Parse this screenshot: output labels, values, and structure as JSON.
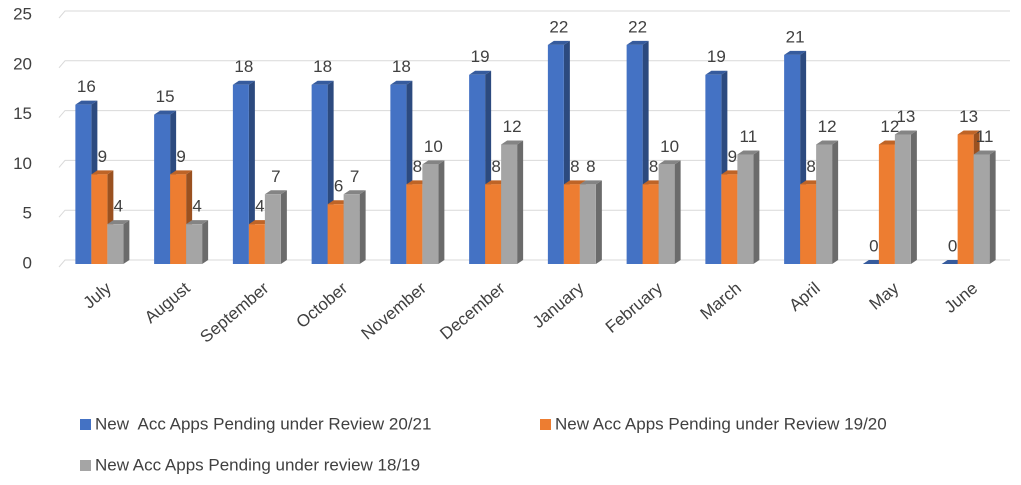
{
  "chart_data": {
    "type": "bar3d",
    "categories": [
      "July",
      "August",
      "September",
      "October",
      "November",
      "December",
      "January",
      "February",
      "March",
      "April",
      "May",
      "June"
    ],
    "series": [
      {
        "name": "New  Acc Apps Pending under Review 20/21",
        "color": "#4472c4",
        "values": [
          16,
          15,
          18,
          18,
          18,
          19,
          22,
          22,
          19,
          21,
          0,
          0
        ]
      },
      {
        "name": "New Acc Apps Pending under Review 19/20",
        "color": "#ed7d31",
        "values": [
          9,
          9,
          4,
          6,
          8,
          8,
          8,
          8,
          9,
          8,
          12,
          13
        ]
      },
      {
        "name": "New Acc Apps Pending under review 18/19",
        "color": "#a5a5a5",
        "values": [
          4,
          4,
          7,
          7,
          10,
          12,
          8,
          10,
          11,
          12,
          13,
          11
        ]
      }
    ],
    "ylim": [
      0,
      25
    ],
    "yticks": [
      0,
      5,
      10,
      15,
      20,
      25
    ],
    "grid": true,
    "legend": "bottom"
  }
}
